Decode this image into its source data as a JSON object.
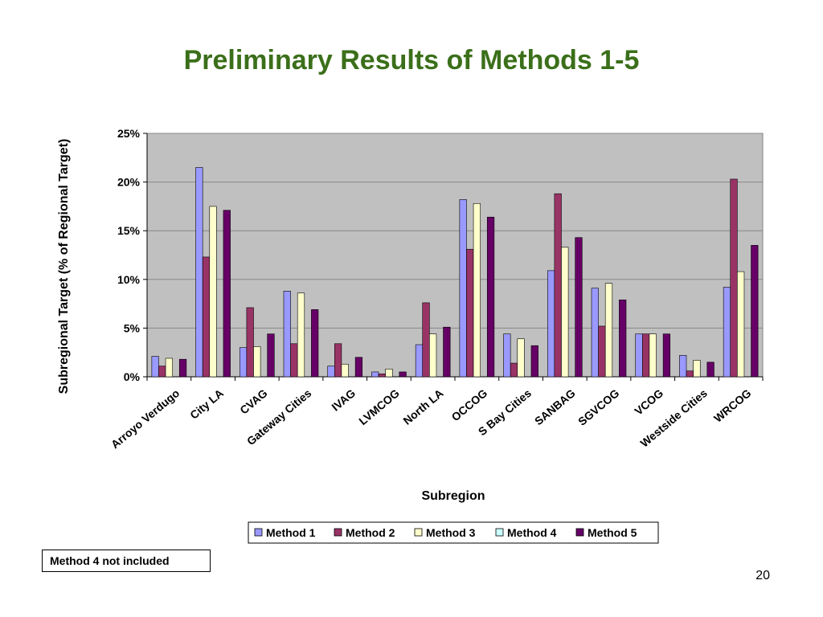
{
  "slide": {
    "title": "Preliminary Results of Methods 1-5",
    "note": "Method 4 not included",
    "page_number": "20"
  },
  "colors": {
    "title": "#3b6f1a",
    "plot_background": "#c0c0c0",
    "gridline": "#888888"
  },
  "chart_data": {
    "type": "bar",
    "title": "",
    "xlabel": "Subregion",
    "ylabel": "Subregional Target (% of Regional Target)",
    "ylim": [
      0,
      25
    ],
    "yticks": [
      "0%",
      "5%",
      "10%",
      "15%",
      "20%",
      "25%"
    ],
    "ytick_values": [
      0,
      5,
      10,
      15,
      20,
      25
    ],
    "grid": true,
    "legend_position": "bottom",
    "categories": [
      "Arroyo Verdugo",
      "City LA",
      "CVAG",
      "Gateway Cities",
      "IVAG",
      "LVMCOG",
      "North LA",
      "OCCOG",
      "S Bay Cities",
      "SANBAG",
      "SGVCOG",
      "VCOG",
      "Westside Cities",
      "WRCOG"
    ],
    "series": [
      {
        "name": "Method 1",
        "color": "#9999ff",
        "values": [
          2.1,
          21.5,
          3.0,
          8.8,
          1.1,
          0.5,
          3.3,
          18.2,
          4.4,
          10.9,
          9.1,
          4.4,
          2.2,
          9.2
        ]
      },
      {
        "name": "Method 2",
        "color": "#993366",
        "values": [
          1.1,
          12.3,
          7.1,
          3.4,
          3.4,
          0.3,
          7.6,
          13.1,
          1.4,
          18.8,
          5.2,
          4.4,
          0.6,
          20.3
        ]
      },
      {
        "name": "Method 3",
        "color": "#ffffcc",
        "values": [
          1.9,
          17.5,
          3.1,
          8.6,
          1.3,
          0.8,
          4.4,
          17.8,
          3.9,
          13.3,
          9.6,
          4.4,
          1.7,
          10.8
        ]
      },
      {
        "name": "Method 4",
        "color": "#ccffff",
        "values": [
          0,
          0,
          0,
          0,
          0,
          0,
          0,
          0,
          0,
          0,
          0,
          0,
          0,
          0
        ]
      },
      {
        "name": "Method 5",
        "color": "#660066",
        "values": [
          1.8,
          17.1,
          4.4,
          6.9,
          2.0,
          0.5,
          5.1,
          16.4,
          3.2,
          14.3,
          7.9,
          4.4,
          1.5,
          13.5
        ]
      }
    ]
  }
}
